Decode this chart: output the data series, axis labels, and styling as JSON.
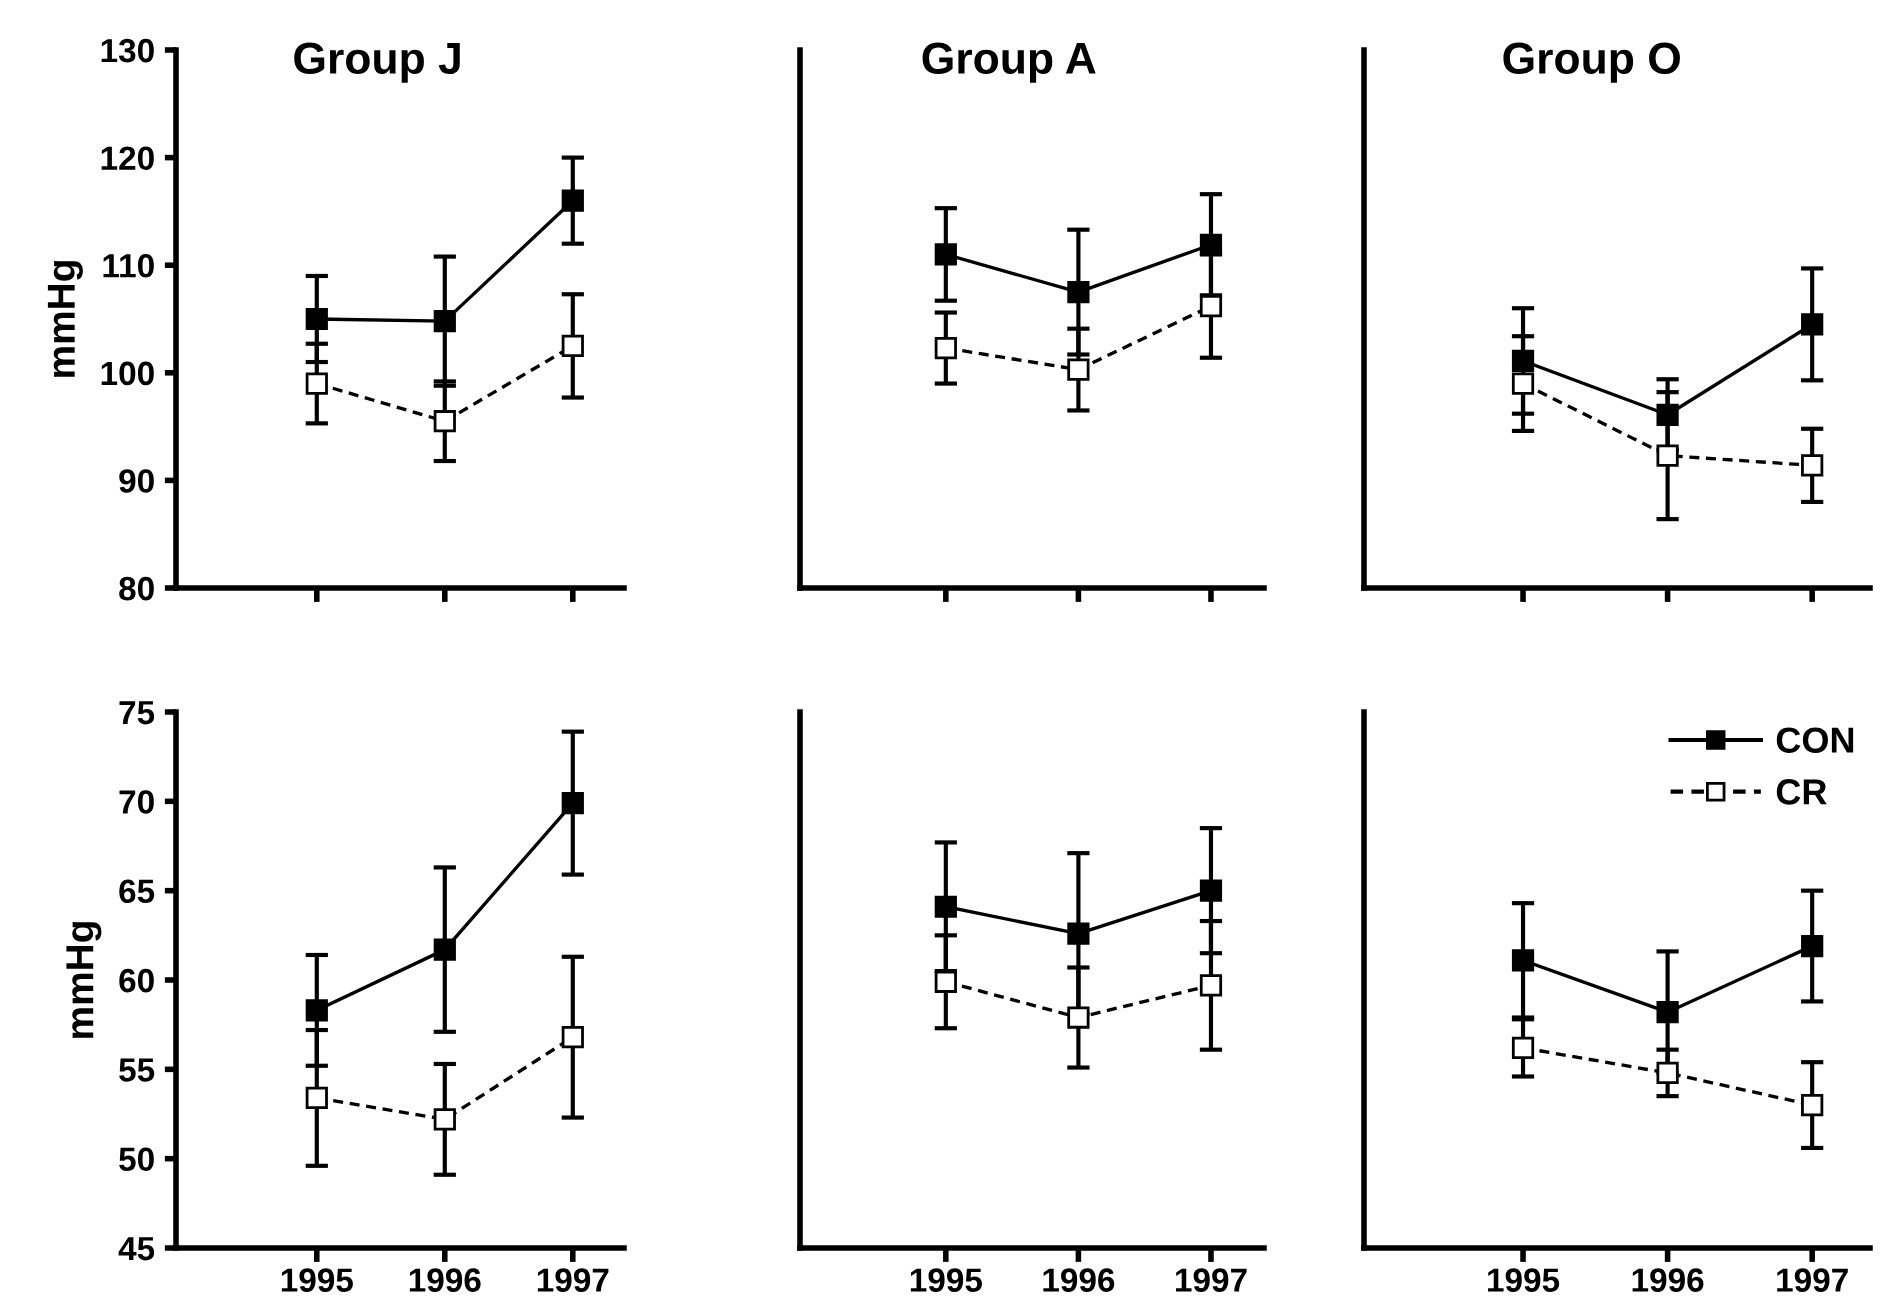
{
  "chart_data": [
    {
      "type": "line",
      "title": "Group J",
      "ylabel": "mmHg",
      "categories": [
        "1995",
        "1996",
        "1997"
      ],
      "ylim": [
        80,
        130
      ],
      "yticks": [
        80,
        90,
        100,
        110,
        120,
        130
      ],
      "tick_labels": "y",
      "marker": "square",
      "series": [
        {
          "color": "#000000",
          "line_style": "solid",
          "values": [
            105,
            104.8,
            116
          ],
          "errors": [
            4,
            6,
            4
          ]
        },
        {
          "color": "#000000",
          "line_style": "dashed",
          "values": [
            99,
            95.5,
            102.5
          ],
          "errors": [
            3.7,
            3.7,
            4.8
          ]
        }
      ]
    },
    {
      "type": "line",
      "title": "Group A",
      "categories": [
        "1995",
        "1996",
        "1997"
      ],
      "ylim": [
        80,
        130
      ],
      "tick_labels": false,
      "marker": "square",
      "series": [
        {
          "color": "#000000",
          "line_style": "solid",
          "values": [
            111,
            107.5,
            111.9
          ],
          "errors": [
            4.3,
            5.8,
            4.7
          ]
        },
        {
          "color": "#000000",
          "line_style": "dashed",
          "values": [
            102.3,
            100.3,
            106.2
          ],
          "errors": [
            3.3,
            3.8,
            4.8
          ]
        }
      ]
    },
    {
      "type": "line",
      "title": "Group O",
      "categories": [
        "1995",
        "1996",
        "1997"
      ],
      "ylim": [
        80,
        130
      ],
      "tick_labels": false,
      "marker": "square",
      "series": [
        {
          "color": "#000000",
          "line_style": "solid",
          "values": [
            101.1,
            96.1,
            104.5
          ],
          "errors": [
            4.9,
            3.3,
            5.2
          ]
        },
        {
          "color": "#000000",
          "line_style": "dashed",
          "values": [
            99,
            92.3,
            91.4
          ],
          "errors": [
            4.4,
            5.9,
            3.4
          ]
        }
      ]
    },
    {
      "type": "line",
      "ylabel": "mmHg",
      "categories": [
        "1995",
        "1996",
        "1997"
      ],
      "ylim": [
        45,
        75
      ],
      "yticks": [
        45,
        50,
        55,
        60,
        65,
        70,
        75
      ],
      "marker": "square",
      "series": [
        {
          "color": "#000000",
          "line_style": "solid",
          "values": [
            58.3,
            61.7,
            69.9
          ],
          "errors": [
            3.1,
            4.6,
            4
          ]
        },
        {
          "color": "#000000",
          "line_style": "dashed",
          "values": [
            53.4,
            52.2,
            56.8
          ],
          "errors": [
            3.8,
            3.1,
            4.5
          ]
        }
      ]
    },
    {
      "type": "line",
      "categories": [
        "1995",
        "1996",
        "1997"
      ],
      "ylim": [
        45,
        75
      ],
      "tick_labels": "x",
      "marker": "square",
      "series": [
        {
          "color": "#000000",
          "line_style": "solid",
          "values": [
            64.1,
            62.6,
            65
          ],
          "errors": [
            3.6,
            4.5,
            3.5
          ]
        },
        {
          "color": "#000000",
          "line_style": "dashed",
          "values": [
            59.9,
            57.9,
            59.7
          ],
          "errors": [
            2.6,
            2.8,
            3.6
          ]
        }
      ]
    },
    {
      "type": "line",
      "categories": [
        "1995",
        "1996",
        "1997"
      ],
      "ylim": [
        45,
        75
      ],
      "tick_labels": "x",
      "marker": "square",
      "legend": "top right",
      "series": [
        {
          "name": "CON",
          "color": "#000000",
          "line_style": "solid",
          "values": [
            61.1,
            58.2,
            61.9
          ],
          "errors": [
            3.2,
            3.4,
            3.1
          ]
        },
        {
          "name": "CR",
          "color": "#000000",
          "line_style": "dashed",
          "values": [
            56.2,
            54.8,
            53
          ],
          "errors": [
            1.6,
            1.3,
            2.4
          ]
        }
      ]
    }
  ]
}
